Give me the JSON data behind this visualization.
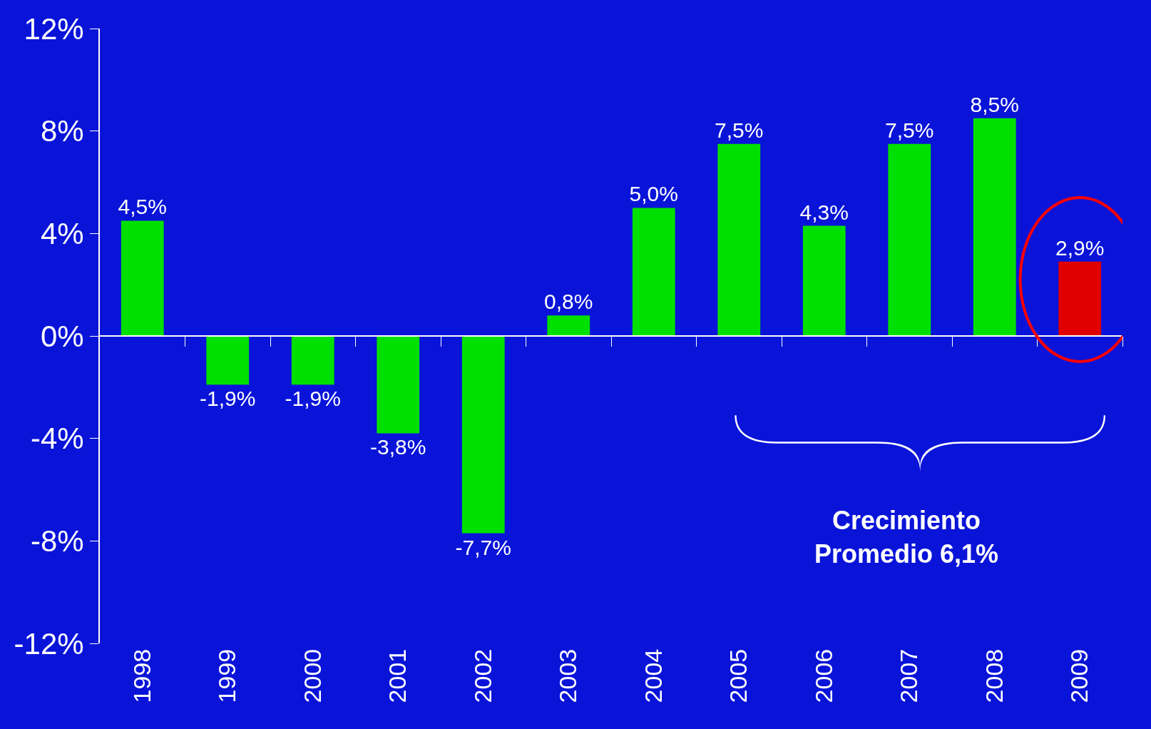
{
  "chart_data": {
    "type": "bar",
    "categories": [
      "1998",
      "1999",
      "2000",
      "2001",
      "2002",
      "2003",
      "2004",
      "2005",
      "2006",
      "2007",
      "2008",
      "2009"
    ],
    "values": [
      4.5,
      -1.9,
      -1.9,
      -3.8,
      -7.7,
      0.8,
      5.0,
      7.5,
      4.3,
      7.5,
      8.5,
      2.9
    ],
    "value_labels": [
      "4,5%",
      "-1,9%",
      "-1,9%",
      "-3,8%",
      "-7,7%",
      "0,8%",
      "5,0%",
      "7,5%",
      "4,3%",
      "7,5%",
      "8,5%",
      "2,9%"
    ],
    "colors": [
      "#00e000",
      "#00e000",
      "#00e000",
      "#00e000",
      "#00e000",
      "#00e000",
      "#00e000",
      "#00e000",
      "#00e000",
      "#00e000",
      "#00e000",
      "#e00000"
    ],
    "ylim": [
      -12,
      12
    ],
    "yticks": [
      {
        "value": -12,
        "label": "-12%"
      },
      {
        "value": -8,
        "label": "-8%"
      },
      {
        "value": -4,
        "label": "-4%"
      },
      {
        "value": 0,
        "label": "0%"
      },
      {
        "value": 4,
        "label": "4%"
      },
      {
        "value": 8,
        "label": "8%"
      },
      {
        "value": 12,
        "label": "12%"
      }
    ],
    "annotations": [
      "Crecimiento\nPromedio 6,1%"
    ]
  }
}
